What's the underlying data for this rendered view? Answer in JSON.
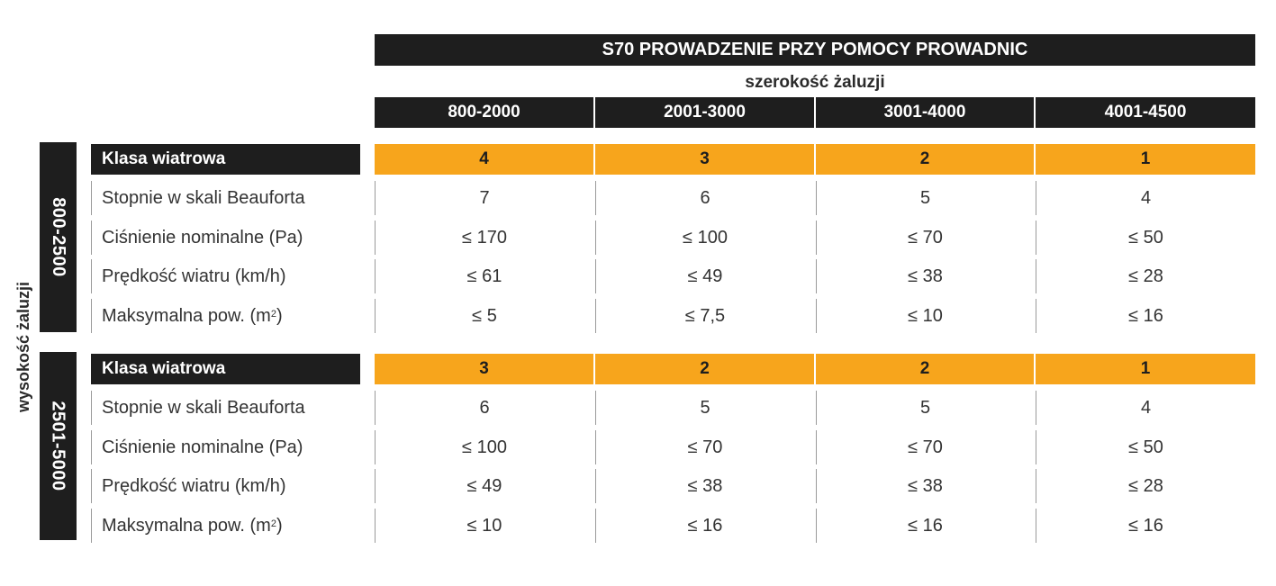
{
  "title": "S70 PROWADZENIE PRZY POMOCY PROWADNIC",
  "width_label": "szerokość żaluzji",
  "height_label": "wysokość żaluzji",
  "columns": [
    "800-2000",
    "2001-3000",
    "3001-4000",
    "4001-4500"
  ],
  "groups": [
    {
      "height_range": "800-2500",
      "class_label": "Klasa wiatrowa",
      "class_values": [
        "4",
        "3",
        "2",
        "1"
      ],
      "rows": [
        {
          "label": "Stopnie w skali Beauforta",
          "values": [
            "7",
            "6",
            "5",
            "4"
          ]
        },
        {
          "label": "Ciśnienie nominalne (Pa)",
          "values": [
            "≤ 170",
            "≤ 100",
            "≤ 70",
            "≤ 50"
          ]
        },
        {
          "label": "Prędkość wiatru (km/h)",
          "values": [
            "≤ 61",
            "≤ 49",
            "≤ 38",
            "≤ 28"
          ]
        },
        {
          "label": "Maksymalna pow. (m",
          "label_sup": "2",
          "label_end": ")",
          "values": [
            "≤ 5",
            "≤ 7,5",
            "≤ 10",
            "≤ 16"
          ]
        }
      ]
    },
    {
      "height_range": "2501-5000",
      "class_label": "Klasa wiatrowa",
      "class_values": [
        "3",
        "2",
        "2",
        "1"
      ],
      "rows": [
        {
          "label": "Stopnie w skali Beauforta",
          "values": [
            "6",
            "5",
            "5",
            "4"
          ]
        },
        {
          "label": "Ciśnienie nominalne (Pa)",
          "values": [
            "≤ 100",
            "≤ 70",
            "≤ 70",
            "≤ 50"
          ]
        },
        {
          "label": "Prędkość wiatru (km/h)",
          "values": [
            "≤ 49",
            "≤ 38",
            "≤ 38",
            "≤ 28"
          ]
        },
        {
          "label": "Maksymalna pow. (m",
          "label_sup": "2",
          "label_end": ")",
          "values": [
            "≤ 10",
            "≤ 16",
            "≤ 16",
            "≤ 16"
          ]
        }
      ]
    }
  ],
  "colors": {
    "dark": "#1e1e1e",
    "accent": "#f7a51c"
  }
}
